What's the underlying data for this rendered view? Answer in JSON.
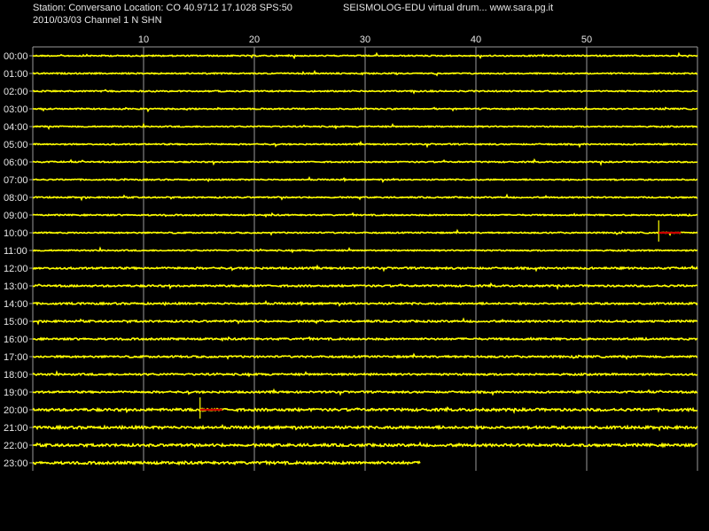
{
  "header": {
    "station_line": "Station: Conversano Location: CO 40.9712 17.1028 SPS:50",
    "date_line": "2010/03/03  Channel 1 N SHN",
    "app_line": "SEISMOLOG-EDU virtual drum... www.sara.pg.it"
  },
  "colors": {
    "background": "#000000",
    "trace": "#ffff00",
    "gridline": "#9a9a9a",
    "event_marker": "#cc0000",
    "text": "#e6e6e6"
  },
  "chart_data": {
    "type": "line",
    "title": "",
    "xlabel": "",
    "ylabel": "",
    "x_ticks": [
      10,
      20,
      30,
      40,
      50
    ],
    "xlim": [
      0,
      60
    ],
    "rows": [
      "00:00",
      "01:00",
      "02:00",
      "03:00",
      "04:00",
      "05:00",
      "06:00",
      "07:00",
      "08:00",
      "09:00",
      "10:00",
      "11:00",
      "12:00",
      "13:00",
      "14:00",
      "15:00",
      "16:00",
      "17:00",
      "18:00",
      "19:00",
      "20:00",
      "21:00",
      "22:00",
      "23:00"
    ],
    "last_row_end_minute": 35,
    "grid": true,
    "events": [
      {
        "row": "10:00",
        "minute": 56.5,
        "duration": 2
      },
      {
        "row": "20:00",
        "minute": 15.1,
        "duration": 2
      }
    ]
  }
}
